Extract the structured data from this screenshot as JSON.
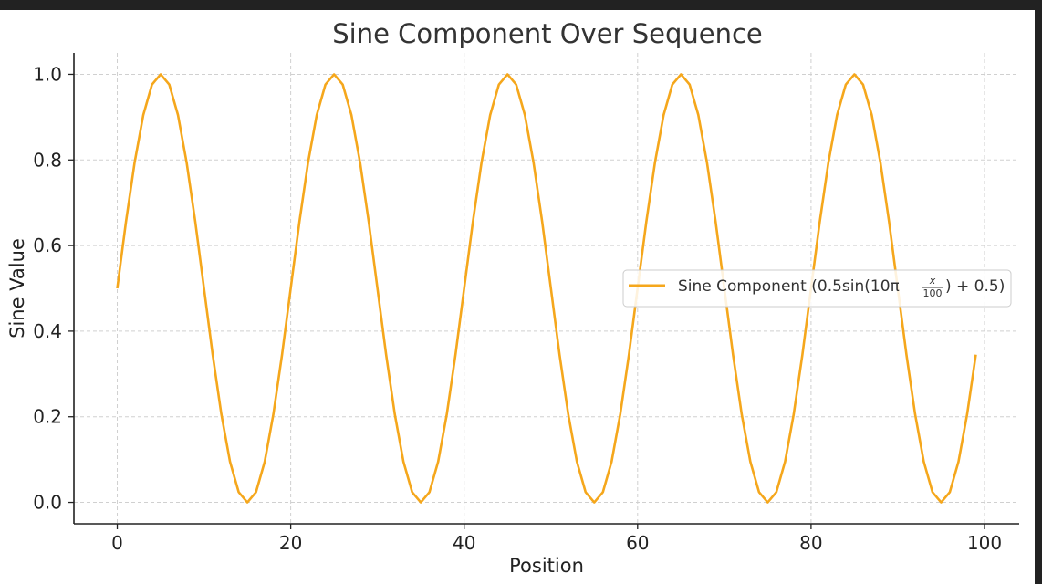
{
  "chart_data": {
    "type": "line",
    "title": "Sine Component Over Sequence",
    "xlabel": "Position",
    "ylabel": "Sine Value",
    "xlim": [
      -5,
      104
    ],
    "ylim": [
      -0.05,
      1.05
    ],
    "xticks": [
      0,
      20,
      40,
      60,
      80,
      100
    ],
    "xtick_labels": [
      "0",
      "20",
      "40",
      "60",
      "80",
      "100"
    ],
    "yticks": [
      0.0,
      0.2,
      0.4,
      0.6,
      0.8,
      1.0
    ],
    "ytick_labels": [
      "0.0",
      "0.2",
      "0.4",
      "0.6",
      "0.8",
      "1.0"
    ],
    "grid": true,
    "legend_position": "center-right",
    "series": [
      {
        "name": "Sine Component",
        "legend_formula": {
          "prefix": "Sine Component (0.5sin(10π",
          "numerator": "x",
          "denominator": "100",
          "suffix": ") + 0.5)"
        },
        "color": "#f5a71c",
        "x": [
          0,
          1,
          2,
          3,
          4,
          5,
          6,
          7,
          8,
          9,
          10,
          11,
          12,
          13,
          14,
          15,
          16,
          17,
          18,
          19,
          20,
          21,
          22,
          23,
          24,
          25,
          26,
          27,
          28,
          29,
          30,
          31,
          32,
          33,
          34,
          35,
          36,
          37,
          38,
          39,
          40,
          41,
          42,
          43,
          44,
          45,
          46,
          47,
          48,
          49,
          50,
          51,
          52,
          53,
          54,
          55,
          56,
          57,
          58,
          59,
          60,
          61,
          62,
          63,
          64,
          65,
          66,
          67,
          68,
          69,
          70,
          71,
          72,
          73,
          74,
          75,
          76,
          77,
          78,
          79,
          80,
          81,
          82,
          83,
          84,
          85,
          86,
          87,
          88,
          89,
          90,
          91,
          92,
          93,
          94,
          95,
          96,
          97,
          98,
          99
        ],
        "values": [
          0.5,
          0.655,
          0.794,
          0.905,
          0.976,
          1.0,
          0.976,
          0.905,
          0.794,
          0.655,
          0.5,
          0.345,
          0.206,
          0.095,
          0.024,
          0.0,
          0.024,
          0.095,
          0.206,
          0.345,
          0.5,
          0.655,
          0.794,
          0.905,
          0.976,
          1.0,
          0.976,
          0.905,
          0.794,
          0.655,
          0.5,
          0.345,
          0.206,
          0.095,
          0.024,
          0.0,
          0.024,
          0.095,
          0.206,
          0.345,
          0.5,
          0.655,
          0.794,
          0.905,
          0.976,
          1.0,
          0.976,
          0.905,
          0.794,
          0.655,
          0.5,
          0.345,
          0.206,
          0.095,
          0.024,
          0.0,
          0.024,
          0.095,
          0.206,
          0.345,
          0.5,
          0.655,
          0.794,
          0.905,
          0.976,
          1.0,
          0.976,
          0.905,
          0.794,
          0.655,
          0.5,
          0.345,
          0.206,
          0.095,
          0.024,
          0.0,
          0.024,
          0.095,
          0.206,
          0.345,
          0.5,
          0.655,
          0.794,
          0.905,
          0.976,
          1.0,
          0.976,
          0.905,
          0.794,
          0.655,
          0.5,
          0.345,
          0.206,
          0.095,
          0.024,
          0.0,
          0.024,
          0.095,
          0.206,
          0.345
        ]
      }
    ]
  }
}
